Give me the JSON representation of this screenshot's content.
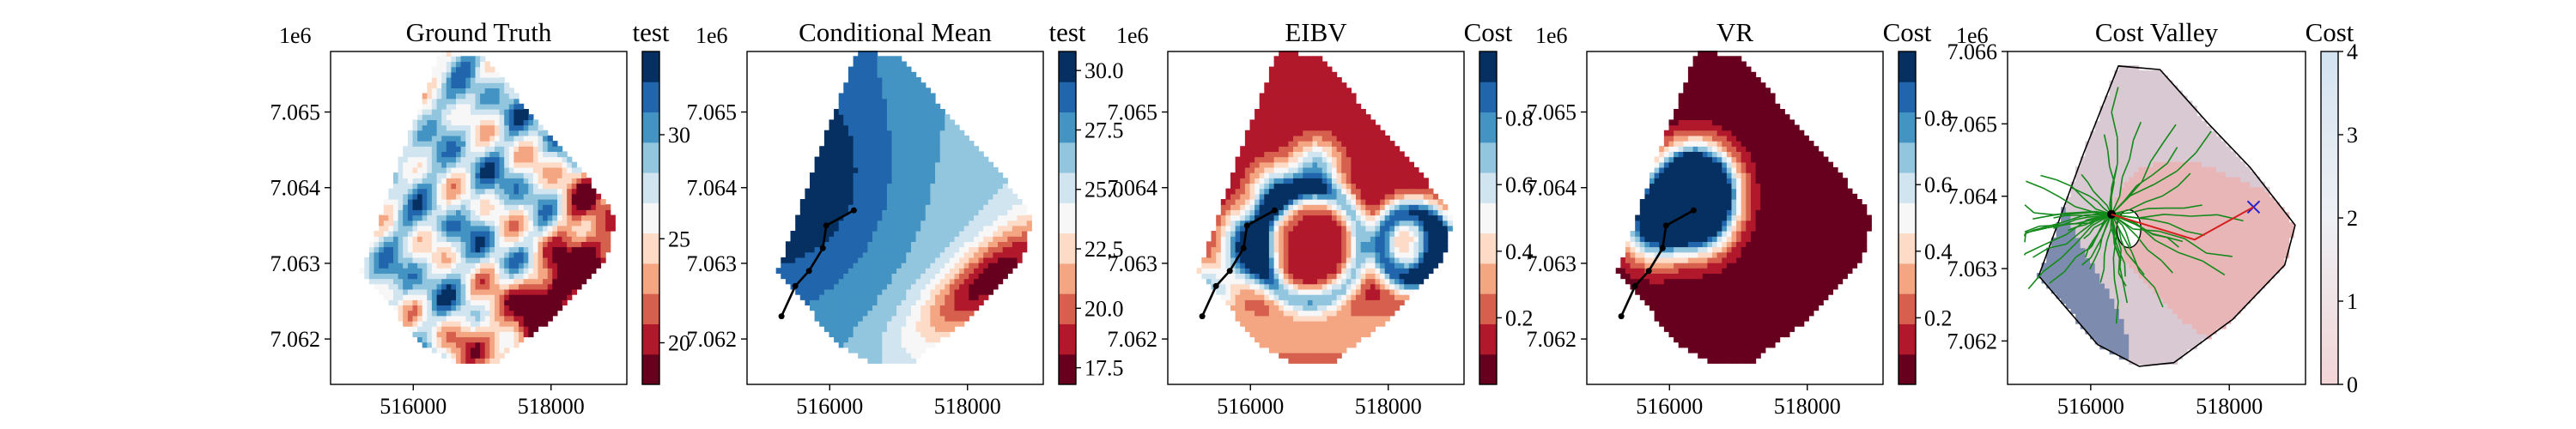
{
  "chart_data": [
    {
      "type": "heatmap",
      "title": "Ground Truth",
      "xlabel": "",
      "ylabel": "",
      "y_multiplier": "1e6",
      "xticks": [
        "516000",
        "518000"
      ],
      "yticks": [
        "7.062",
        "7.063",
        "7.064",
        "7.065"
      ],
      "xlim": [
        514800,
        519100
      ],
      "ylim": [
        7061400,
        7065800
      ],
      "colorbar": {
        "label": "test",
        "ticks": [
          "20",
          "25",
          "30"
        ],
        "range": [
          18,
          34
        ],
        "cmap": "RdBu"
      },
      "field_range": [
        18,
        34
      ],
      "paths": [],
      "annotations": []
    },
    {
      "type": "heatmap",
      "title": "Conditional Mean",
      "xlabel": "",
      "ylabel": "",
      "y_multiplier": "1e6",
      "xticks": [
        "516000",
        "518000"
      ],
      "yticks": [
        "7.062",
        "7.063",
        "7.064",
        "7.065"
      ],
      "xlim": [
        514800,
        519100
      ],
      "ylim": [
        7061400,
        7065800
      ],
      "colorbar": {
        "label": "test",
        "ticks": [
          "17.5",
          "20.0",
          "22.5",
          "25.0",
          "27.5",
          "30.0"
        ],
        "range": [
          16.8,
          30.8
        ],
        "cmap": "RdBu"
      },
      "field_range": [
        16.8,
        30.8
      ],
      "paths": [
        {
          "name": "",
          "x": [
            515300,
            515500,
            515700,
            515900,
            515950,
            516350
          ],
          "y": [
            7062300,
            7062700,
            7062900,
            7063200,
            7063500,
            7063700
          ]
        }
      ],
      "annotations": []
    },
    {
      "type": "heatmap",
      "title": "EIBV",
      "xlabel": "",
      "ylabel": "",
      "y_multiplier": "1e6",
      "xticks": [
        "516000",
        "518000"
      ],
      "yticks": [
        "7.062",
        "7.063",
        "7.064",
        "7.065"
      ],
      "xlim": [
        514800,
        519100
      ],
      "ylim": [
        7061400,
        7065800
      ],
      "colorbar": {
        "label": "Cost",
        "ticks": [
          "0.2",
          "0.4",
          "0.6",
          "0.8"
        ],
        "range": [
          0,
          1
        ],
        "cmap": "RdBu"
      },
      "field_range": [
        0,
        1
      ],
      "paths": [
        {
          "name": "",
          "x": [
            515300,
            515500,
            515700,
            515900,
            515950,
            516350
          ],
          "y": [
            7062300,
            7062700,
            7062900,
            7063200,
            7063500,
            7063700
          ]
        }
      ],
      "annotations": []
    },
    {
      "type": "heatmap",
      "title": "VR",
      "xlabel": "",
      "ylabel": "",
      "y_multiplier": "1e6",
      "xticks": [
        "516000",
        "518000"
      ],
      "yticks": [
        "7.062",
        "7.063",
        "7.064",
        "7.065"
      ],
      "xlim": [
        514800,
        519100
      ],
      "ylim": [
        7061400,
        7065800
      ],
      "colorbar": {
        "label": "Cost",
        "ticks": [
          "0.2",
          "0.4",
          "0.6",
          "0.8"
        ],
        "range": [
          0,
          1
        ],
        "cmap": "RdBu"
      },
      "field_range": [
        0,
        1
      ],
      "paths": [
        {
          "name": "",
          "x": [
            515300,
            515500,
            515700,
            515900,
            515950,
            516350
          ],
          "y": [
            7062300,
            7062700,
            7062900,
            7063200,
            7063500,
            7063700
          ]
        }
      ],
      "annotations": []
    },
    {
      "type": "heatmap",
      "title": "Cost Valley",
      "xlabel": "",
      "ylabel": "",
      "y_multiplier": "1e6",
      "xticks": [
        "516000",
        "518000"
      ],
      "yticks": [
        "7.062",
        "7.063",
        "7.064",
        "7.065",
        "7.066"
      ],
      "xlim": [
        514800,
        519100
      ],
      "ylim": [
        7061400,
        7066000
      ],
      "colorbar": {
        "label": "Cost",
        "ticks": [
          "0",
          "1",
          "2",
          "3",
          "4"
        ],
        "range": [
          0,
          4
        ],
        "cmap": "RdBu-light"
      },
      "field_range": [
        0,
        4
      ],
      "paths": [],
      "annotations": [
        {
          "kind": "rrt-tree",
          "color": "#14891b",
          "root": [
            516300,
            7063750
          ]
        },
        {
          "kind": "current-location",
          "x": 516300,
          "y": 7063750,
          "marker": "circle"
        },
        {
          "kind": "goal",
          "x": 518350,
          "y": 7063850,
          "marker": "x",
          "color": "#2020d0"
        },
        {
          "kind": "planned-path",
          "x": [
            516300,
            517500,
            518350
          ],
          "y": [
            7063750,
            7063400,
            7063850
          ],
          "color": "#d62020"
        }
      ]
    }
  ]
}
